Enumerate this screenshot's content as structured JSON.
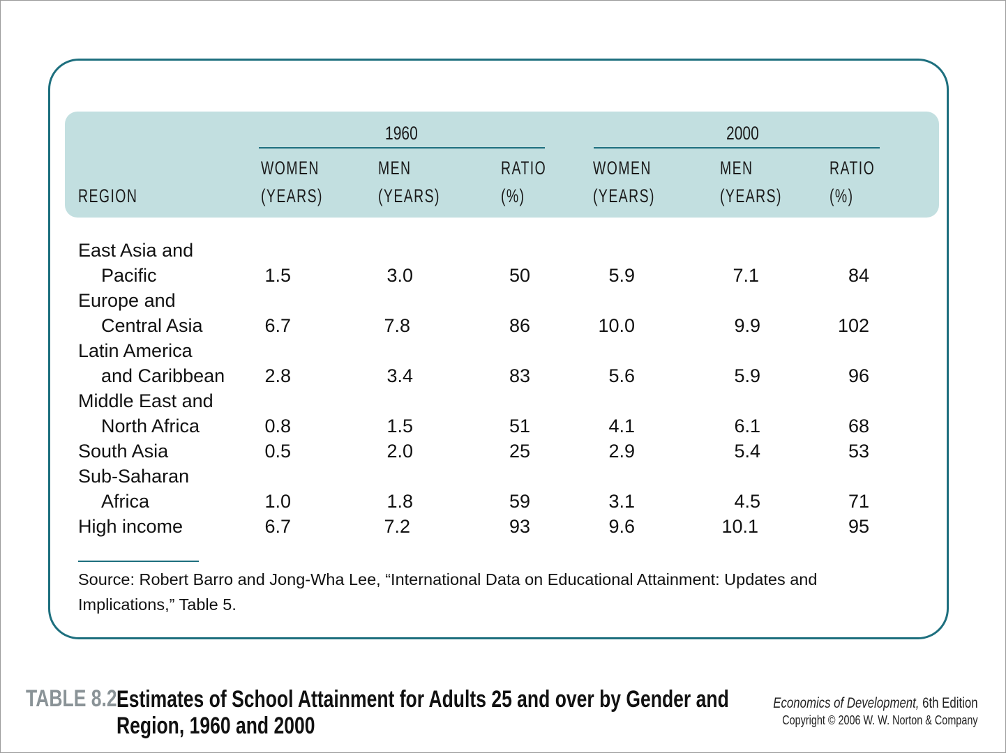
{
  "table": {
    "year_groups": [
      "1960",
      "2000"
    ],
    "region_header": "REGION",
    "column_headers": [
      {
        "line1": "WOMEN",
        "line2": "(YEARS)"
      },
      {
        "line1": "MEN",
        "line2": "(YEARS)"
      },
      {
        "line1": "RATIO",
        "line2": "(%)"
      },
      {
        "line1": "WOMEN",
        "line2": "(YEARS)"
      },
      {
        "line1": "MEN",
        "line2": "(YEARS)"
      },
      {
        "line1": "RATIO",
        "line2": "(%)"
      }
    ],
    "rows": [
      {
        "region_line1": "East Asia and",
        "region_line2": "Pacific",
        "values": [
          "1.5",
          "3.0",
          "50",
          "5.9",
          "7.1",
          "84"
        ]
      },
      {
        "region_line1": "Europe and",
        "region_line2": "Central Asia",
        "values": [
          "6.7",
          "7.8",
          "86",
          "10.0",
          "9.9",
          "102"
        ]
      },
      {
        "region_line1": "Latin America",
        "region_line2": "and Caribbean",
        "values": [
          "2.8",
          "3.4",
          "83",
          "5.6",
          "5.9",
          "96"
        ]
      },
      {
        "region_line1": "Middle East and",
        "region_line2": "North Africa",
        "values": [
          "0.8",
          "1.5",
          "51",
          "4.1",
          "6.1",
          "68"
        ]
      },
      {
        "region_line1": "",
        "region_line2": "South Asia",
        "values": [
          "0.5",
          "2.0",
          "25",
          "2.9",
          "5.4",
          "53"
        ]
      },
      {
        "region_line1": "Sub-Saharan",
        "region_line2": "Africa",
        "values": [
          "1.0",
          "1.8",
          "59",
          "3.1",
          "4.5",
          "71"
        ]
      },
      {
        "region_line1": "",
        "region_line2": "High income",
        "values": [
          "6.7",
          "7.2",
          "93",
          "9.6",
          "10.1",
          "95"
        ]
      }
    ],
    "source": "Source: Robert Barro and Jong-Wha Lee, “International Data on Educational Attainment: Updates and Implications,” Table 5."
  },
  "caption": {
    "label": "TABLE 8.2",
    "title_line1": "Estimates of School Attainment for Adults 25 and over by Gender and",
    "title_line2": "Region, 1960 and 2000"
  },
  "credit": {
    "book": "Economics of Development,",
    "edition": " 6th Edition",
    "copyright": "Copyright © 2006 W. W. Norton & Company"
  }
}
